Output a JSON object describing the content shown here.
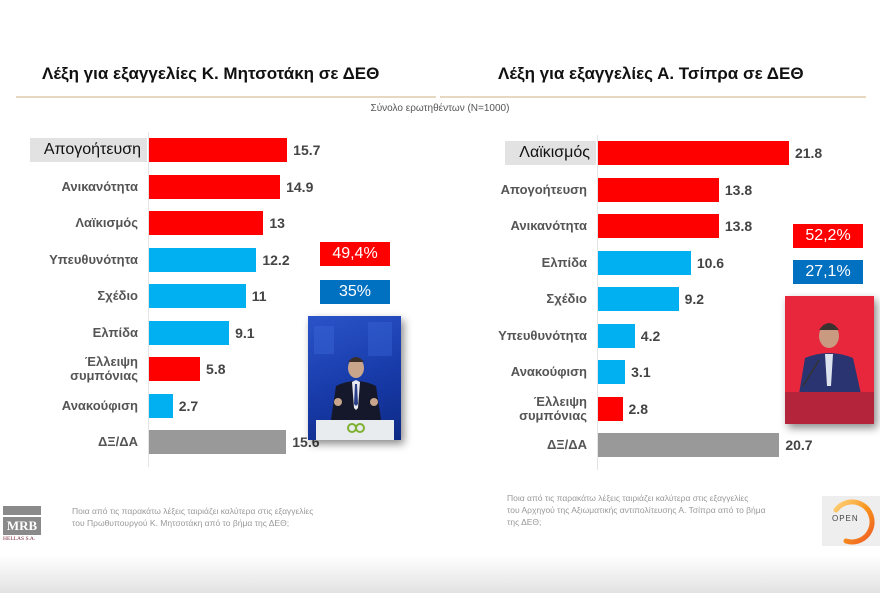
{
  "subtitle": "Σύνολο ερωτηθέντων (N=1000)",
  "colors": {
    "negative": "#ff0000",
    "positive": "#00b0f0",
    "neutral": "#999999",
    "badge_red": "#ff0000",
    "badge_blue": "#0070c0"
  },
  "left": {
    "title": "Λέξη για εξαγγελίες Κ. Μητσοτάκη σε ΔΕΘ",
    "badges": {
      "negative": "49,4%",
      "positive": "35%"
    },
    "footnote_line1": "Ποια από τις παρακάτω λέξεις ταιριάζει καλύτερα στις εξαγγελίες",
    "footnote_line2": "του Πρωθυπουργού Κ. Μητσοτάκη από το βήμα της ΔΕΘ;",
    "logo_text": "MRB",
    "logo_sub": "HELLAS S.A."
  },
  "right": {
    "title": "Λέξη για εξαγγελίες Α. Τσίπρα σε ΔΕΘ",
    "badges": {
      "negative": "52,2%",
      "positive": "27,1%"
    },
    "footnote_line1": "Ποια από τις παρακάτω λέξεις ταιριάζει καλύτερα στις εξαγγελίες",
    "footnote_line2": "του Αρχηγού της Αξιωματικής αντιπολίτευσης Α. Τσίπρα από το βήμα",
    "footnote_line3": "της ΔΕΘ;",
    "logo_text": "OPEN"
  },
  "chart_data": [
    {
      "type": "bar",
      "orientation": "horizontal",
      "title": "Λέξη για εξαγγελίες Κ. Μητσοτάκη σε ΔΕΘ",
      "subtitle": "Σύνολο ερωτηθέντων (N=1000)",
      "categories": [
        "Απογοήτευση",
        "Ανικανότητα",
        "Λαϊκισμός",
        "Υπευθυνότητα",
        "Σχέδιο",
        "Ελπίδα",
        "Έλλειψη συμπόνιας",
        "Ανακούφιση",
        "ΔΞ/ΔΑ"
      ],
      "values": [
        15.7,
        14.9,
        13,
        12.2,
        11,
        9.1,
        5.8,
        2.7,
        15.6
      ],
      "value_labels": [
        "15.7",
        "14.9",
        "13",
        "12.2",
        "11",
        "9.1",
        "5.8",
        "2.7",
        "15.6"
      ],
      "sentiment": [
        "negative",
        "negative",
        "negative",
        "positive",
        "positive",
        "positive",
        "negative",
        "positive",
        "neutral"
      ],
      "highlighted": "Απογοήτευση",
      "totals": {
        "negative": "49,4%",
        "positive": "35%"
      },
      "xlabel": "",
      "ylabel": "",
      "grid": false
    },
    {
      "type": "bar",
      "orientation": "horizontal",
      "title": "Λέξη για εξαγγελίες Α. Τσίπρα σε ΔΕΘ",
      "subtitle": "Σύνολο ερωτηθέντων (N=1000)",
      "categories": [
        "Λαϊκισμός",
        "Απογοήτευση",
        "Ανικανότητα",
        "Ελπίδα",
        "Σχέδιο",
        "Υπευθυνότητα",
        "Ανακούφιση",
        "Έλλειψη συμπόνιας",
        "ΔΞ/ΔΑ"
      ],
      "values": [
        21.8,
        13.8,
        13.8,
        10.6,
        9.2,
        4.2,
        3.1,
        2.8,
        20.7
      ],
      "value_labels": [
        "21.8",
        "13.8",
        "13.8",
        "10.6",
        "9.2",
        "4.2",
        "3.1",
        "2.8",
        "20.7"
      ],
      "sentiment": [
        "negative",
        "negative",
        "negative",
        "positive",
        "positive",
        "positive",
        "positive",
        "negative",
        "neutral"
      ],
      "highlighted": "Λαϊκισμός",
      "totals": {
        "negative": "52,2%",
        "positive": "27,1%"
      },
      "xlabel": "",
      "ylabel": "",
      "grid": false
    }
  ]
}
